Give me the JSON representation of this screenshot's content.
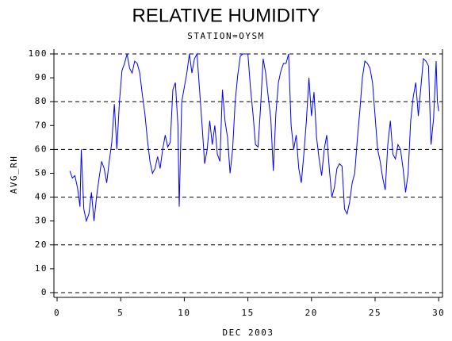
{
  "chart_data": {
    "type": "line",
    "title": "RELATIVE HUMIDITY",
    "subtitle": "STATION=OYSM",
    "x_label": "DEC 2003",
    "y_label": "AVG_RH",
    "xlim": [
      -0.25,
      30.3
    ],
    "xticks": [
      0,
      5,
      10,
      15,
      20,
      25,
      30
    ],
    "ylim": [
      -2,
      102
    ],
    "yticks": [
      0,
      10,
      20,
      30,
      40,
      50,
      60,
      70,
      80,
      90,
      100
    ],
    "reference_lines": [
      0,
      20,
      40,
      60,
      80,
      100
    ],
    "series": [
      {
        "color": "#0000ff",
        "x": [
          1.0,
          1.2,
          1.4,
          1.6,
          1.8,
          1.9,
          2.1,
          2.3,
          2.5,
          2.7,
          2.9,
          3.1,
          3.3,
          3.5,
          3.7,
          3.9,
          4.1,
          4.3,
          4.5,
          4.7,
          4.9,
          5.1,
          5.3,
          5.5,
          5.7,
          5.9,
          6.1,
          6.3,
          6.5,
          6.7,
          6.9,
          7.1,
          7.3,
          7.5,
          7.7,
          7.9,
          8.1,
          8.3,
          8.5,
          8.7,
          8.9,
          9.1,
          9.3,
          9.5,
          9.6,
          9.8,
          10.0,
          10.2,
          10.4,
          10.6,
          10.8,
          11.0,
          11.2,
          11.4,
          11.6,
          11.8,
          12.0,
          12.2,
          12.4,
          12.6,
          12.8,
          13.0,
          13.2,
          13.4,
          13.6,
          13.8,
          14.0,
          14.2,
          14.4,
          14.6,
          14.8,
          15.0,
          15.2,
          15.4,
          15.6,
          15.8,
          16.0,
          16.2,
          16.4,
          16.6,
          16.8,
          17.0,
          17.2,
          17.4,
          17.6,
          17.8,
          18.0,
          18.2,
          18.4,
          18.6,
          18.8,
          19.0,
          19.2,
          19.4,
          19.6,
          19.8,
          20.0,
          20.2,
          20.4,
          20.6,
          20.8,
          21.0,
          21.2,
          21.4,
          21.6,
          21.8,
          22.0,
          22.2,
          22.4,
          22.6,
          22.8,
          23.0,
          23.2,
          23.4,
          23.6,
          23.8,
          24.0,
          24.2,
          24.4,
          24.6,
          24.8,
          25.0,
          25.2,
          25.4,
          25.6,
          25.8,
          26.0,
          26.2,
          26.4,
          26.6,
          26.8,
          27.0,
          27.2,
          27.4,
          27.6,
          27.8,
          28.0,
          28.2,
          28.4,
          28.6,
          28.8,
          29.0,
          29.2,
          29.4,
          29.6,
          29.8,
          29.9,
          30.0
        ],
        "values": [
          51,
          48,
          49,
          44,
          36,
          60,
          35,
          30,
          33,
          42,
          30,
          40,
          48,
          55,
          52,
          46,
          55,
          63,
          79,
          60,
          80,
          93,
          96,
          100,
          94,
          92,
          97,
          96,
          92,
          83,
          75,
          64,
          55,
          50,
          52,
          57,
          52,
          60,
          66,
          61,
          63,
          85,
          88,
          70,
          36,
          80,
          86,
          92,
          100,
          92,
          98,
          100,
          85,
          70,
          54,
          60,
          72,
          62,
          70,
          58,
          55,
          85,
          72,
          65,
          50,
          60,
          80,
          91,
          99,
          100,
          100,
          100,
          86,
          75,
          62,
          61,
          78,
          98,
          92,
          82,
          73,
          51,
          75,
          88,
          93,
          96,
          96,
          100,
          70,
          60,
          66,
          52,
          46,
          58,
          72,
          90,
          74,
          84,
          65,
          56,
          49,
          60,
          66,
          52,
          40,
          44,
          52,
          54,
          53,
          35,
          33,
          38,
          46,
          50,
          64,
          76,
          90,
          97,
          96,
          94,
          88,
          74,
          60,
          55,
          48,
          43,
          62,
          72,
          58,
          56,
          62,
          60,
          52,
          42,
          50,
          72,
          82,
          88,
          74,
          86,
          98,
          97,
          95,
          62,
          73,
          97,
          80,
          76
        ]
      }
    ]
  }
}
